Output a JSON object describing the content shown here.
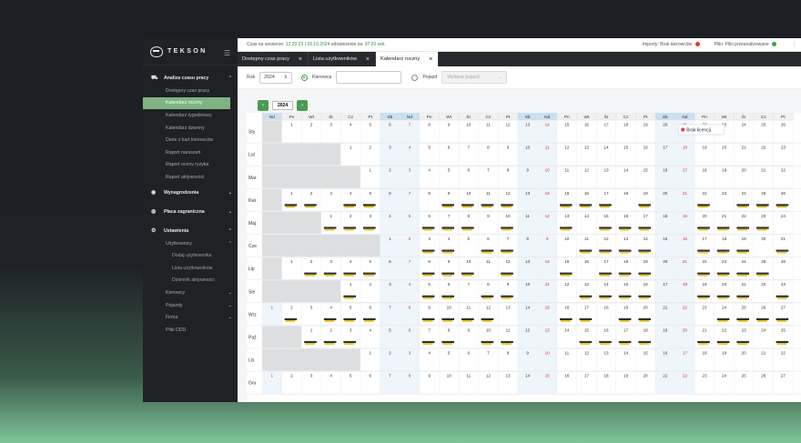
{
  "app": {
    "logo": "TEKSON"
  },
  "sidebar": {
    "groups": [
      {
        "id": "analiza",
        "label": "Analiza czasu pracy",
        "icon": "truck-icon",
        "open": true,
        "items": [
          "Dostępny czas pracy",
          "Kalendarz roczny",
          "Kalendarz tygodniowy",
          "Kalendarz dzienny",
          "Dane z kart kierowców",
          "Raport naruszeń",
          "Raport oceny ryzyka",
          "Raport aktywności"
        ],
        "active": "Kalendarz roczny"
      },
      {
        "id": "wynagrodzenia",
        "label": "Wynagrodzenia",
        "icon": "coins-icon"
      },
      {
        "id": "placa",
        "label": "Płaca zagraniczna",
        "icon": "globe-icon"
      },
      {
        "id": "ustawienia",
        "label": "Ustawienia",
        "icon": "gear-icon",
        "open": true
      }
    ],
    "settings": {
      "users_label": "Użytkownicy",
      "users_items": [
        "Dodaj użytkownika",
        "Lista użytkowników",
        "Dziennik aktywności"
      ],
      "rest": [
        "Kierowcy",
        "Pojazdy",
        "Firma",
        "Pliki DDD"
      ]
    }
  },
  "topbar": {
    "server_label": "Czas na serwerze:",
    "server_time": "12:20:23 | 23.10.2024",
    "refresh_label": "odświeżenie za:",
    "refresh_value": "07:20 sek.",
    "imports_label": "Importy:",
    "imports_value": "Brak kierowców",
    "files_label": "Pliki:",
    "files_value": "Pliki przeanalizowane",
    "status_red": "#e53935",
    "status_green": "#43a047"
  },
  "tabs": [
    {
      "label": "Dostępny czas pracy",
      "active": false
    },
    {
      "label": "Lista użytkowników",
      "active": false
    },
    {
      "label": "Kalendarz roczny",
      "active": true
    }
  ],
  "filters": {
    "year_label": "Rok",
    "year_value": "2024",
    "driver_label": "Kierowca",
    "vehicle_label": "Pojazd",
    "vehicle_placeholder": "Wybierz pojazd"
  },
  "calendar": {
    "year": "2024",
    "weekday_headers": [
      "Nd",
      "Pn",
      "Wt",
      "Śr",
      "Cz",
      "Pt",
      "Sb",
      "Nd",
      "Pn",
      "Wt",
      "Śr",
      "Cz",
      "Pt",
      "Sb",
      "Nd",
      "Pn",
      "Wt",
      "Śr",
      "Cz",
      "Pt",
      "Sb",
      "Nd",
      "Pn",
      "Wt",
      "Śr",
      "Cz",
      "Pt"
    ],
    "months": [
      "Sty",
      "Lut",
      "Mar",
      "Kwi",
      "Maj",
      "Cze",
      "Lip",
      "Sie",
      "Wrz",
      "Paź",
      "Lis",
      "Gru"
    ],
    "first_weekday": [
      1,
      4,
      5,
      1,
      3,
      6,
      1,
      4,
      0,
      2,
      5,
      0
    ],
    "days_in_month": [
      31,
      29,
      31,
      30,
      31,
      30,
      31,
      31,
      30,
      31,
      30,
      31
    ],
    "activity_months": [
      "Kwi",
      "Maj",
      "Cze",
      "Lip",
      "Sie",
      "Wrz",
      "Paź"
    ],
    "tooltip": "Brak licencji.",
    "accent": "#4c9b53",
    "weekend_header_color": "#c9dff2",
    "sunday_text_color": "#d32f2f"
  }
}
